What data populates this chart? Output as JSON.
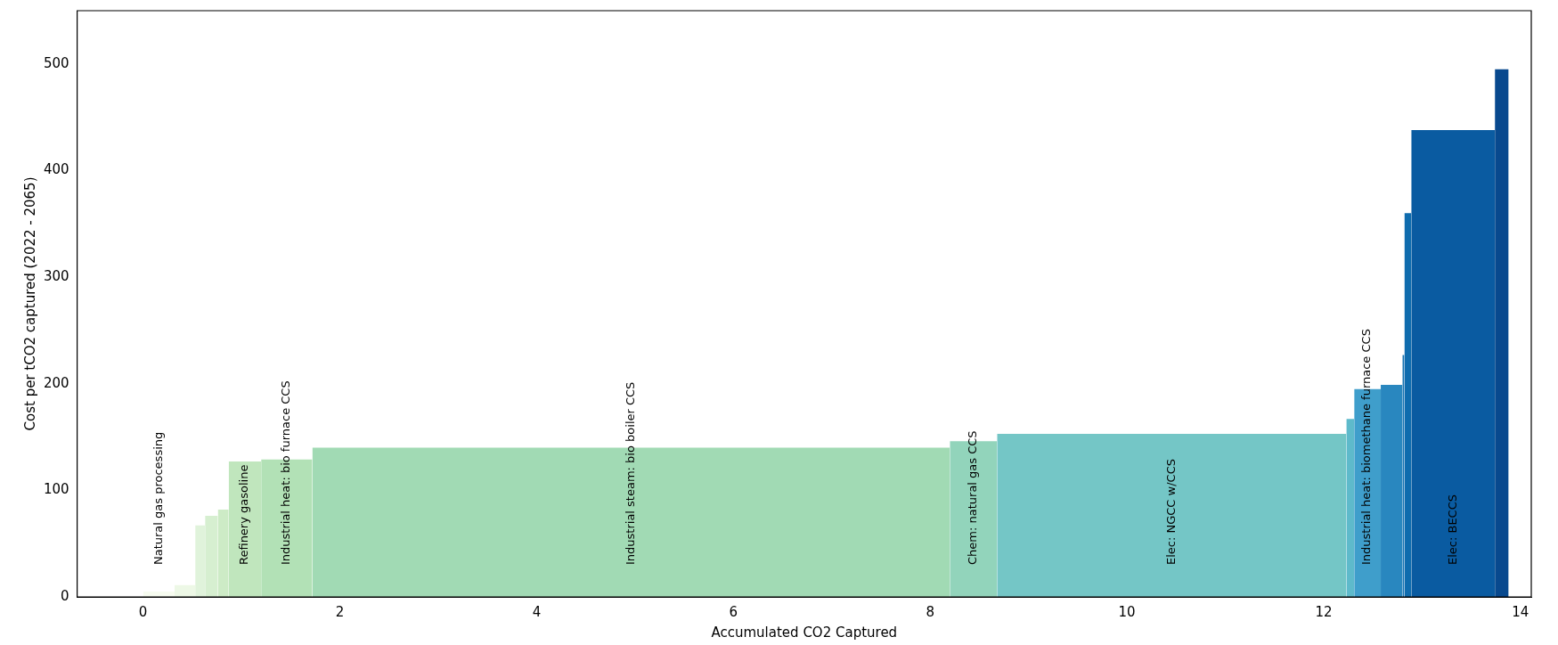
{
  "chart_data": {
    "type": "area",
    "xlabel": "Accumulated CO2 Captured",
    "ylabel": "Cost per tCO2 captured (2022 - 2065)",
    "xlim": [
      -0.67,
      14.11
    ],
    "ylim": [
      0,
      550
    ],
    "xticks": [
      0,
      2,
      4,
      6,
      8,
      10,
      12,
      14
    ],
    "yticks": [
      0,
      100,
      200,
      300,
      400,
      500
    ],
    "grid": false,
    "legend": false,
    "series": [
      {
        "name": "Natural gas processing",
        "x": [
          0,
          0.32
        ],
        "values": [
          5,
          5
        ],
        "color": "#f7fcf0"
      },
      {
        "x": [
          0.32,
          0.53
        ],
        "values": [
          11,
          11
        ],
        "color": "#edf8e6"
      },
      {
        "x": [
          0.53,
          0.63
        ],
        "values": [
          67,
          67
        ],
        "color": "#e0f3db"
      },
      {
        "x": [
          0.63,
          0.76
        ],
        "values": [
          76,
          76
        ],
        "color": "#d6efd0"
      },
      {
        "x": [
          0.76,
          0.87
        ],
        "values": [
          82,
          82
        ],
        "color": "#cdebc6"
      },
      {
        "name": "Refinery gasoline",
        "x": [
          0.87,
          1.2
        ],
        "values": [
          127,
          127
        ],
        "color": "#c0e6bd"
      },
      {
        "name": "Industrial heat: bio furnace CCS",
        "x": [
          1.2,
          1.72
        ],
        "values": [
          129,
          129
        ],
        "color": "#b2e1b6"
      },
      {
        "name": "Industrial steam: bio boiler CCS",
        "x": [
          1.72,
          8.2
        ],
        "values": [
          140,
          140
        ],
        "color": "#a1dab4"
      },
      {
        "name": "Chem: natural gas CCS",
        "x": [
          8.2,
          8.68
        ],
        "values": [
          146,
          146
        ],
        "color": "#92d4bb"
      },
      {
        "name": "Elec: NGCC w/CCS",
        "x": [
          8.68,
          12.23
        ],
        "values": [
          153,
          153
        ],
        "color": "#74c6c6"
      },
      {
        "x": [
          12.23,
          12.31
        ],
        "values": [
          167,
          167
        ],
        "color": "#5ebacb"
      },
      {
        "name": "Industrial heat: biomethane furnace CCS",
        "x": [
          12.31,
          12.58
        ],
        "values": [
          195,
          195
        ],
        "color": "#3f9ecb"
      },
      {
        "x": [
          12.58,
          12.8
        ],
        "values": [
          199,
          199
        ],
        "color": "#2987bf"
      },
      {
        "x": [
          12.8,
          12.82
        ],
        "values": [
          227,
          227
        ],
        "color": "#1774b3"
      },
      {
        "x": [
          12.82,
          12.89
        ],
        "values": [
          360,
          360
        ],
        "color": "#0f6cae"
      },
      {
        "name": "Elec: BECCS",
        "x": [
          12.89,
          13.74
        ],
        "values": [
          438,
          438
        ],
        "color": "#0a5ba1"
      },
      {
        "x": [
          13.74,
          13.88
        ],
        "values": [
          495,
          495
        ],
        "color": "#08498e"
      }
    ]
  }
}
